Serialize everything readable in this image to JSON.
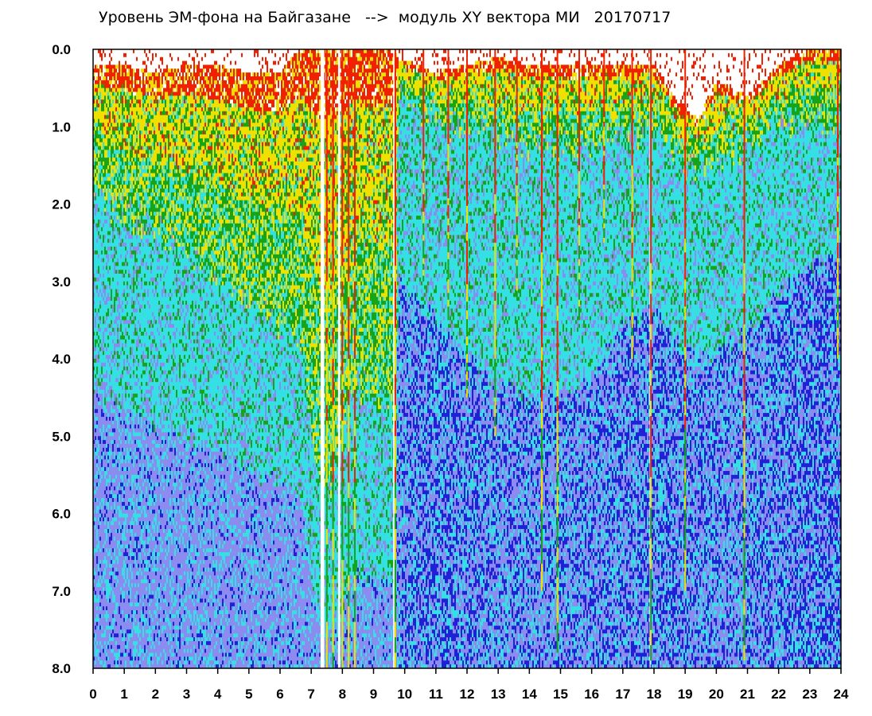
{
  "chart_data": {
    "type": "heatmap",
    "title": "Уровень ЭМ-фона на Байгазане   -->  модуль XY вектора МИ   20170717",
    "xlabel": "",
    "ylabel": "",
    "xlim": [
      0,
      24
    ],
    "ylim": [
      8.0,
      0.0
    ],
    "x_ticks": [
      "0",
      "1",
      "2",
      "3",
      "4",
      "5",
      "6",
      "7",
      "8",
      "9",
      "10",
      "11",
      "12",
      "13",
      "14",
      "15",
      "16",
      "17",
      "18",
      "19",
      "20",
      "21",
      "22",
      "23",
      "24"
    ],
    "y_ticks": [
      "0.0",
      "1.0",
      "2.0",
      "3.0",
      "4.0",
      "5.0",
      "6.0",
      "7.0",
      "8.0"
    ],
    "colorscale": [
      "#2020d8",
      "#8c8cf0",
      "#34e0e4",
      "#17a417",
      "#f0e000",
      "#f02000"
    ],
    "grid": false,
    "legend": "none",
    "intensity_profile": [
      {
        "hour": 0.0,
        "onset": 0.2,
        "green_to": 1.9,
        "cyan_to": 4.5,
        "deep": 0.2
      },
      {
        "hour": 1.0,
        "onset": 0.2,
        "green_to": 2.1,
        "cyan_to": 4.6,
        "deep": 0.2
      },
      {
        "hour": 2.0,
        "onset": 0.3,
        "green_to": 2.3,
        "cyan_to": 4.8,
        "deep": 0.2
      },
      {
        "hour": 3.0,
        "onset": 0.2,
        "green_to": 2.6,
        "cyan_to": 5.0,
        "deep": 0.2
      },
      {
        "hour": 4.0,
        "onset": 0.2,
        "green_to": 3.0,
        "cyan_to": 5.2,
        "deep": 0.2
      },
      {
        "hour": 5.0,
        "onset": 0.3,
        "green_to": 3.3,
        "cyan_to": 5.4,
        "deep": 0.2
      },
      {
        "hour": 6.0,
        "onset": 0.3,
        "green_to": 3.6,
        "cyan_to": 5.6,
        "deep": 0.2
      },
      {
        "hour": 6.6,
        "onset": 0.0,
        "green_to": 3.7,
        "cyan_to": 5.7,
        "deep": 0.2
      },
      {
        "hour": 7.4,
        "onset": 0.0,
        "green_to": 6.0,
        "cyan_to": 7.8,
        "deep": 0.1
      },
      {
        "hour": 8.5,
        "onset": 0.0,
        "green_to": 4.3,
        "cyan_to": 6.8,
        "deep": 0.2
      },
      {
        "hour": 9.7,
        "onset": 0.0,
        "green_to": 4.8,
        "cyan_to": 7.0,
        "deep": 0.2
      },
      {
        "hour": 9.8,
        "onset": 0.1,
        "green_to": 0.6,
        "cyan_to": 3.0,
        "deep": 0.5
      },
      {
        "hour": 11.0,
        "onset": 0.3,
        "green_to": 0.9,
        "cyan_to": 3.5,
        "deep": 0.7
      },
      {
        "hour": 12.0,
        "onset": 0.2,
        "green_to": 1.0,
        "cyan_to": 4.0,
        "deep": 0.6
      },
      {
        "hour": 13.0,
        "onset": 0.1,
        "green_to": 1.1,
        "cyan_to": 4.3,
        "deep": 0.5
      },
      {
        "hour": 14.0,
        "onset": 0.2,
        "green_to": 1.3,
        "cyan_to": 4.5,
        "deep": 0.5
      },
      {
        "hour": 15.0,
        "onset": 0.2,
        "green_to": 1.2,
        "cyan_to": 4.4,
        "deep": 0.5
      },
      {
        "hour": 16.0,
        "onset": 0.2,
        "green_to": 1.2,
        "cyan_to": 4.2,
        "deep": 0.55
      },
      {
        "hour": 17.0,
        "onset": 0.2,
        "green_to": 1.1,
        "cyan_to": 3.6,
        "deep": 0.6
      },
      {
        "hour": 18.0,
        "onset": 0.2,
        "green_to": 1.1,
        "cyan_to": 3.4,
        "deep": 0.7
      },
      {
        "hour": 18.6,
        "onset": 0.6,
        "green_to": 1.4,
        "cyan_to": 3.8,
        "deep": 0.6
      },
      {
        "hour": 19.4,
        "onset": 0.9,
        "green_to": 1.6,
        "cyan_to": 4.0,
        "deep": 0.5
      },
      {
        "hour": 20.0,
        "onset": 0.4,
        "green_to": 1.4,
        "cyan_to": 3.9,
        "deep": 0.5
      },
      {
        "hour": 21.0,
        "onset": 0.6,
        "green_to": 1.2,
        "cyan_to": 3.6,
        "deep": 0.55
      },
      {
        "hour": 22.0,
        "onset": 0.2,
        "green_to": 1.0,
        "cyan_to": 3.2,
        "deep": 0.65
      },
      {
        "hour": 23.0,
        "onset": 0.0,
        "green_to": 0.9,
        "cyan_to": 2.8,
        "deep": 0.7
      },
      {
        "hour": 24.0,
        "onset": 0.0,
        "green_to": 1.0,
        "cyan_to": 2.6,
        "deep": 0.75
      }
    ],
    "spikes": [
      {
        "hour": 7.5,
        "to": 8.0
      },
      {
        "hour": 7.7,
        "to": 8.0
      },
      {
        "hour": 8.0,
        "to": 8.0
      },
      {
        "hour": 8.2,
        "to": 8.0
      },
      {
        "hour": 8.4,
        "to": 8.0
      },
      {
        "hour": 9.7,
        "to": 8.0
      },
      {
        "hour": 10.6,
        "to": 3.0
      },
      {
        "hour": 11.4,
        "to": 3.5
      },
      {
        "hour": 12.0,
        "to": 4.5
      },
      {
        "hour": 12.9,
        "to": 5.0
      },
      {
        "hour": 13.6,
        "to": 3.2
      },
      {
        "hour": 14.4,
        "to": 7.0
      },
      {
        "hour": 14.9,
        "to": 7.8
      },
      {
        "hour": 15.6,
        "to": 3.5
      },
      {
        "hour": 16.4,
        "to": 2.5
      },
      {
        "hour": 17.3,
        "to": 4.0
      },
      {
        "hour": 17.9,
        "to": 7.9
      },
      {
        "hour": 19.0,
        "to": 7.0
      },
      {
        "hour": 20.9,
        "to": 7.9
      },
      {
        "hour": 23.9,
        "to": 4.0
      }
    ],
    "gaps": [
      {
        "hour": 7.3,
        "width": 0.12
      },
      {
        "hour": 7.86,
        "width": 0.07
      },
      {
        "hour": 9.63,
        "width": 0.04
      },
      {
        "hour": 17.86,
        "width": 0.03
      }
    ]
  }
}
